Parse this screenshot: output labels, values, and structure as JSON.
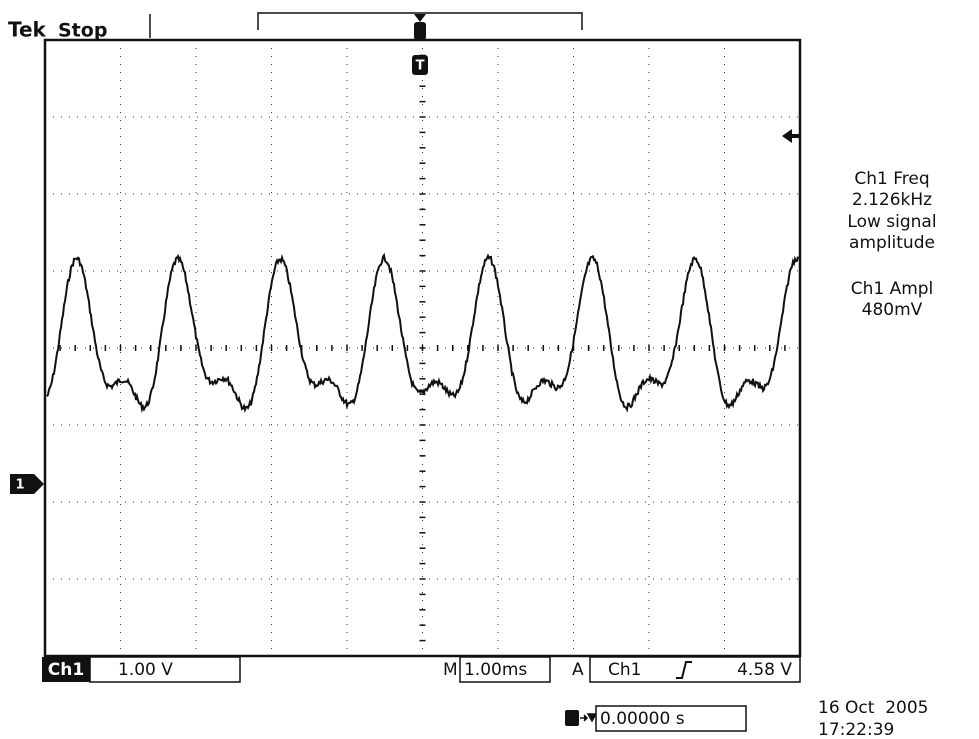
{
  "header": {
    "brand": "Tek",
    "status": "Stop"
  },
  "markers": {
    "trigger": "T",
    "channel": "1"
  },
  "measurements": {
    "freq_label": "Ch1 Freq",
    "freq_value": "2.126kHz",
    "freq_note_1": "Low signal",
    "freq_note_2": "amplitude",
    "ampl_label": "Ch1 Ampl",
    "ampl_value": "480mV"
  },
  "footer": {
    "channel": "Ch1",
    "volts_per_div": "1.00 V",
    "timebase_prefix": "M",
    "timebase": "1.00ms",
    "trigger_prefix": "A",
    "trigger_source": "Ch1",
    "trigger_level": "4.58 V",
    "trigger_position": "0.00000 s",
    "date": "16 Oct  2005",
    "time": "17:22:39"
  }
}
